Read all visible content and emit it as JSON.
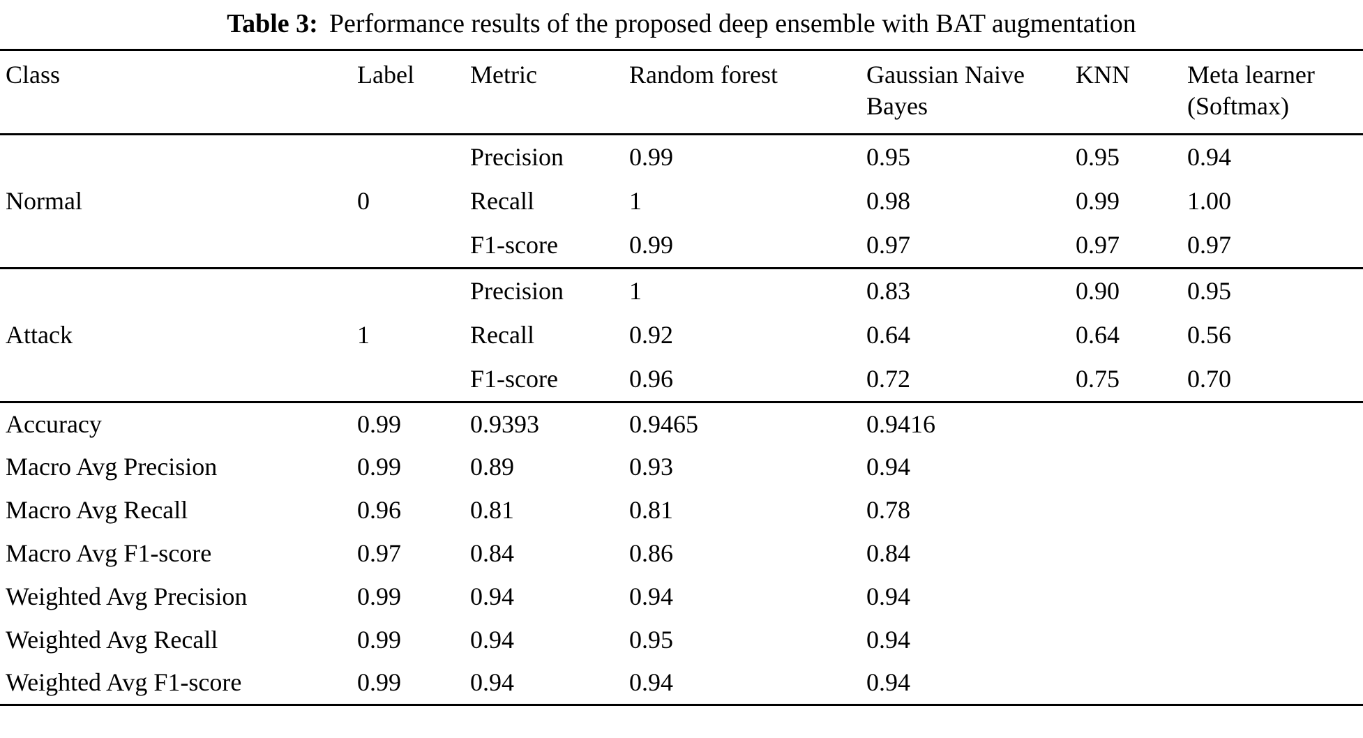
{
  "caption": {
    "label": "Table 3:",
    "text": "Performance results of the proposed deep ensemble with BAT augmentation"
  },
  "table": {
    "headers": [
      "Class",
      "Label",
      "Metric",
      "Random forest",
      "Gaussian Naive Bayes",
      "KNN",
      "Meta learner (Softmax)"
    ],
    "class_groups": [
      {
        "class": "Normal",
        "label": "0",
        "rows": [
          {
            "metric": "Precision",
            "values": [
              "0.99",
              "0.95",
              "0.95",
              "0.94"
            ]
          },
          {
            "metric": "Recall",
            "values": [
              "1",
              "0.98",
              "0.99",
              "1.00"
            ]
          },
          {
            "metric": "F1-score",
            "values": [
              "0.99",
              "0.97",
              "0.97",
              "0.97"
            ]
          }
        ]
      },
      {
        "class": "Attack",
        "label": "1",
        "rows": [
          {
            "metric": "Precision",
            "values": [
              "1",
              "0.83",
              "0.90",
              "0.95"
            ]
          },
          {
            "metric": "Recall",
            "values": [
              "0.92",
              "0.64",
              "0.64",
              "0.56"
            ]
          },
          {
            "metric": "F1-score",
            "values": [
              "0.96",
              "0.72",
              "0.75",
              "0.70"
            ]
          }
        ]
      }
    ],
    "summary_rows": [
      {
        "name": "Accuracy",
        "values": [
          "0.99",
          "0.9393",
          "0.9465",
          "0.9416"
        ]
      },
      {
        "name": "Macro Avg Precision",
        "values": [
          "0.99",
          "0.89",
          "0.93",
          "0.94"
        ]
      },
      {
        "name": "Macro Avg Recall",
        "values": [
          "0.96",
          "0.81",
          "0.81",
          "0.78"
        ]
      },
      {
        "name": "Macro Avg F1-score",
        "values": [
          "0.97",
          "0.84",
          "0.86",
          "0.84"
        ]
      },
      {
        "name": "Weighted Avg Precision",
        "values": [
          "0.99",
          "0.94",
          "0.94",
          "0.94"
        ]
      },
      {
        "name": "Weighted Avg Recall",
        "values": [
          "0.99",
          "0.94",
          "0.95",
          "0.94"
        ]
      },
      {
        "name": "Weighted Avg F1-score",
        "values": [
          "0.99",
          "0.94",
          "0.94",
          "0.94"
        ]
      }
    ]
  }
}
